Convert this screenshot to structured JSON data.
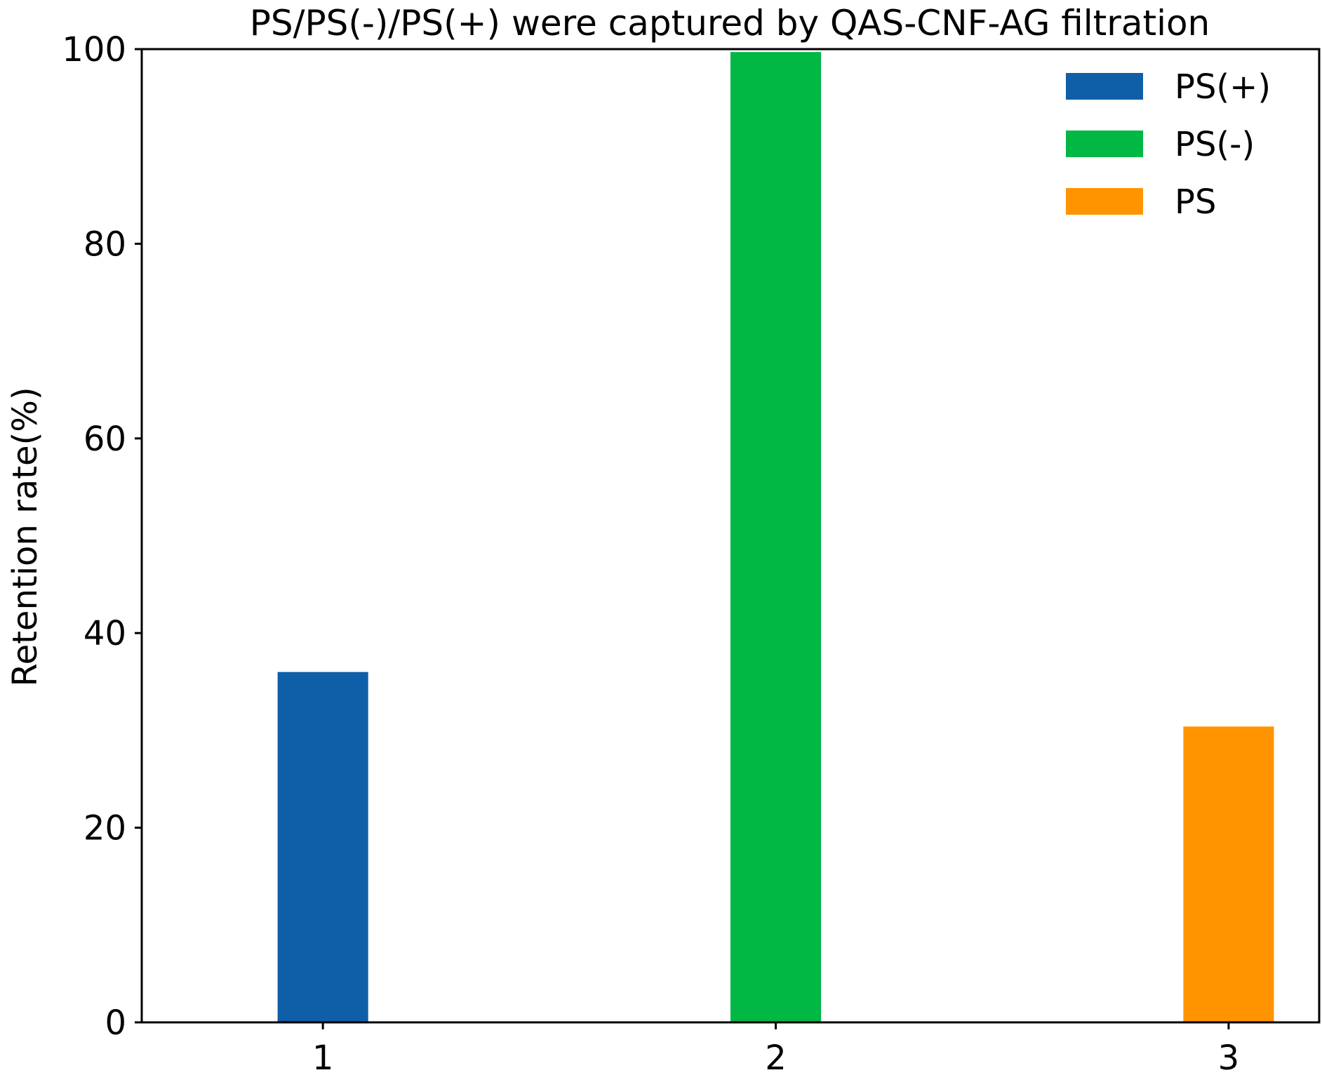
{
  "chart_data": {
    "type": "bar",
    "title": "PS/PS(-)/PS(+) were captured by QAS-CNF-AG filtration",
    "xlabel": "",
    "ylabel": "Retention rate(%)",
    "ylim": [
      0,
      100
    ],
    "y_ticks": [
      "0",
      "20",
      "40",
      "60",
      "80",
      "100"
    ],
    "x_ticks": [
      "1",
      "2",
      "3"
    ],
    "grid": false,
    "legend_position": "top-right",
    "series": [
      {
        "name": "PS(+)",
        "x": 1,
        "value": 36,
        "color": "#0f5ea8"
      },
      {
        "name": "PS(-)",
        "x": 2,
        "value": 99.7,
        "color": "#00b843"
      },
      {
        "name": "PS",
        "x": 3,
        "value": 30.4,
        "color": "#ff9400"
      }
    ]
  }
}
